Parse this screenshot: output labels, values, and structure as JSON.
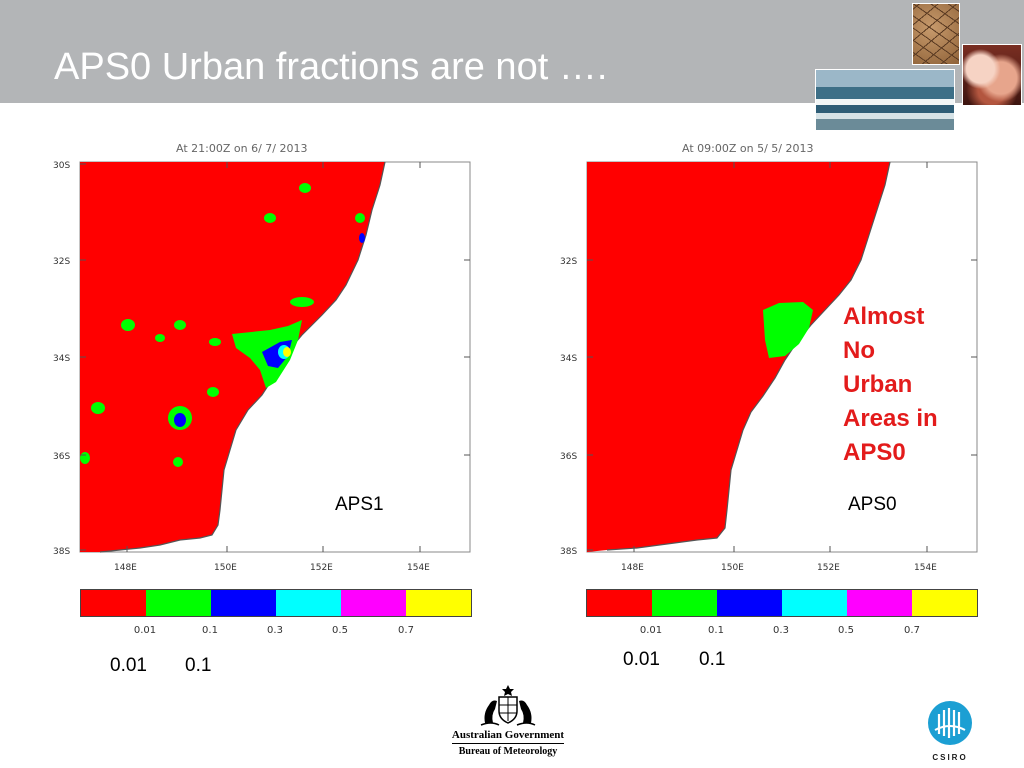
{
  "slide": {
    "title": "APS0 Urban fractions are not …."
  },
  "photos": [
    {
      "name": "cracked-earth-photo"
    },
    {
      "name": "storm-cloud-photo"
    },
    {
      "name": "ocean-wave-photo"
    }
  ],
  "maps": [
    {
      "id": "left",
      "header": "At 21:00Z on 6/ 7/ 2013",
      "label": "APS1",
      "lat_ticks": [
        "30S",
        "32S",
        "34S",
        "36S",
        "38S"
      ],
      "lon_ticks": [
        "148E",
        "150E",
        "152E",
        "154E"
      ]
    },
    {
      "id": "right",
      "header": "At 09:00Z on 5/ 5/ 2013",
      "label": "APS0",
      "lat_ticks": [
        "32S",
        "34S",
        "36S",
        "38S"
      ],
      "lon_ticks": [
        "148E",
        "150E",
        "152E",
        "154E"
      ]
    }
  ],
  "colorbar": {
    "colors": [
      "#ff0000",
      "#00ff00",
      "#0000ff",
      "#00ffff",
      "#ff00ff",
      "#ffff00"
    ],
    "labels": [
      "0.01",
      "0.1",
      "0.3",
      "0.5",
      "0.7"
    ]
  },
  "big_labels": [
    "0.01",
    "0.1"
  ],
  "annotation": {
    "lines": [
      "Almost",
      "No",
      "Urban",
      "Areas in",
      "APS0"
    ],
    "color": "#e31b1b"
  },
  "logos": {
    "gov_line1": "Australian Government",
    "gov_line2": "Bureau of Meteorology",
    "csiro": "CSIRO"
  }
}
